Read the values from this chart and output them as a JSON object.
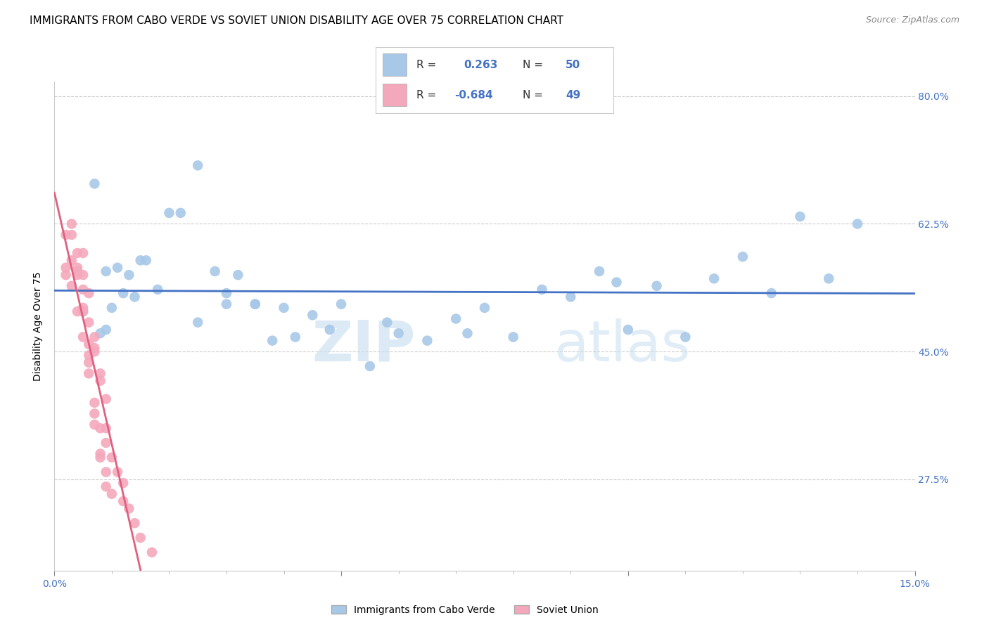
{
  "title": "IMMIGRANTS FROM CABO VERDE VS SOVIET UNION DISABILITY AGE OVER 75 CORRELATION CHART",
  "source": "Source: ZipAtlas.com",
  "ylabel": "Disability Age Over 75",
  "xlim": [
    0.0,
    0.15
  ],
  "ylim": [
    0.15,
    0.82
  ],
  "x_tick_positions": [
    0.0,
    0.05,
    0.1,
    0.15
  ],
  "x_tick_labels_ends": [
    "0.0%",
    "15.0%"
  ],
  "y_ticks": [
    0.275,
    0.45,
    0.625,
    0.8
  ],
  "y_tick_labels": [
    "27.5%",
    "45.0%",
    "62.5%",
    "80.0%"
  ],
  "cabo_verde_R": "0.263",
  "cabo_verde_N": "50",
  "soviet_union_R": "-0.684",
  "soviet_union_N": "49",
  "cabo_verde_color": "#a8c8e8",
  "soviet_union_color": "#f4a8bc",
  "cabo_verde_line_color": "#4472c4",
  "soviet_union_line_color": "#e06080",
  "cabo_verde_x": [
    0.005,
    0.007,
    0.009,
    0.01,
    0.011,
    0.012,
    0.013,
    0.008,
    0.014,
    0.009,
    0.015,
    0.016,
    0.018,
    0.02,
    0.025,
    0.022,
    0.028,
    0.03,
    0.032,
    0.035,
    0.025,
    0.03,
    0.035,
    0.038,
    0.04,
    0.042,
    0.045,
    0.048,
    0.05,
    0.055,
    0.06,
    0.065,
    0.07,
    0.075,
    0.08,
    0.085,
    0.09,
    0.095,
    0.1,
    0.105,
    0.11,
    0.115,
    0.12,
    0.125,
    0.13,
    0.135,
    0.14,
    0.098,
    0.072,
    0.058
  ],
  "cabo_verde_y": [
    0.505,
    0.68,
    0.56,
    0.51,
    0.565,
    0.53,
    0.555,
    0.475,
    0.525,
    0.48,
    0.575,
    0.575,
    0.535,
    0.64,
    0.705,
    0.64,
    0.56,
    0.515,
    0.555,
    0.515,
    0.49,
    0.53,
    0.515,
    0.465,
    0.51,
    0.47,
    0.5,
    0.48,
    0.515,
    0.43,
    0.475,
    0.465,
    0.495,
    0.51,
    0.47,
    0.535,
    0.525,
    0.56,
    0.48,
    0.54,
    0.47,
    0.55,
    0.58,
    0.53,
    0.635,
    0.55,
    0.625,
    0.545,
    0.475,
    0.49
  ],
  "soviet_union_x": [
    0.002,
    0.003,
    0.004,
    0.002,
    0.003,
    0.005,
    0.004,
    0.003,
    0.002,
    0.004,
    0.005,
    0.006,
    0.004,
    0.003,
    0.005,
    0.006,
    0.007,
    0.005,
    0.004,
    0.006,
    0.007,
    0.008,
    0.006,
    0.005,
    0.007,
    0.008,
    0.009,
    0.006,
    0.005,
    0.007,
    0.008,
    0.009,
    0.007,
    0.006,
    0.008,
    0.009,
    0.01,
    0.008,
    0.007,
    0.009,
    0.011,
    0.012,
    0.01,
    0.009,
    0.013,
    0.014,
    0.012,
    0.015,
    0.017
  ],
  "soviet_union_y": [
    0.565,
    0.575,
    0.555,
    0.61,
    0.625,
    0.585,
    0.565,
    0.54,
    0.555,
    0.505,
    0.555,
    0.53,
    0.585,
    0.61,
    0.51,
    0.49,
    0.47,
    0.535,
    0.56,
    0.445,
    0.455,
    0.42,
    0.46,
    0.505,
    0.45,
    0.41,
    0.385,
    0.435,
    0.47,
    0.365,
    0.345,
    0.325,
    0.38,
    0.42,
    0.305,
    0.285,
    0.255,
    0.31,
    0.35,
    0.265,
    0.285,
    0.245,
    0.305,
    0.345,
    0.235,
    0.215,
    0.27,
    0.195,
    0.175
  ],
  "watermark_zip": "ZIP",
  "watermark_atlas": "atlas",
  "background_color": "#ffffff",
  "grid_color": "#cccccc",
  "title_fontsize": 11,
  "label_fontsize": 10,
  "tick_fontsize": 10,
  "legend_box_label1": "R =  0.263   N = 50",
  "legend_box_label2": "R = -0.684   N = 49",
  "bottom_legend_label1": "Immigrants from Cabo Verde",
  "bottom_legend_label2": "Soviet Union"
}
